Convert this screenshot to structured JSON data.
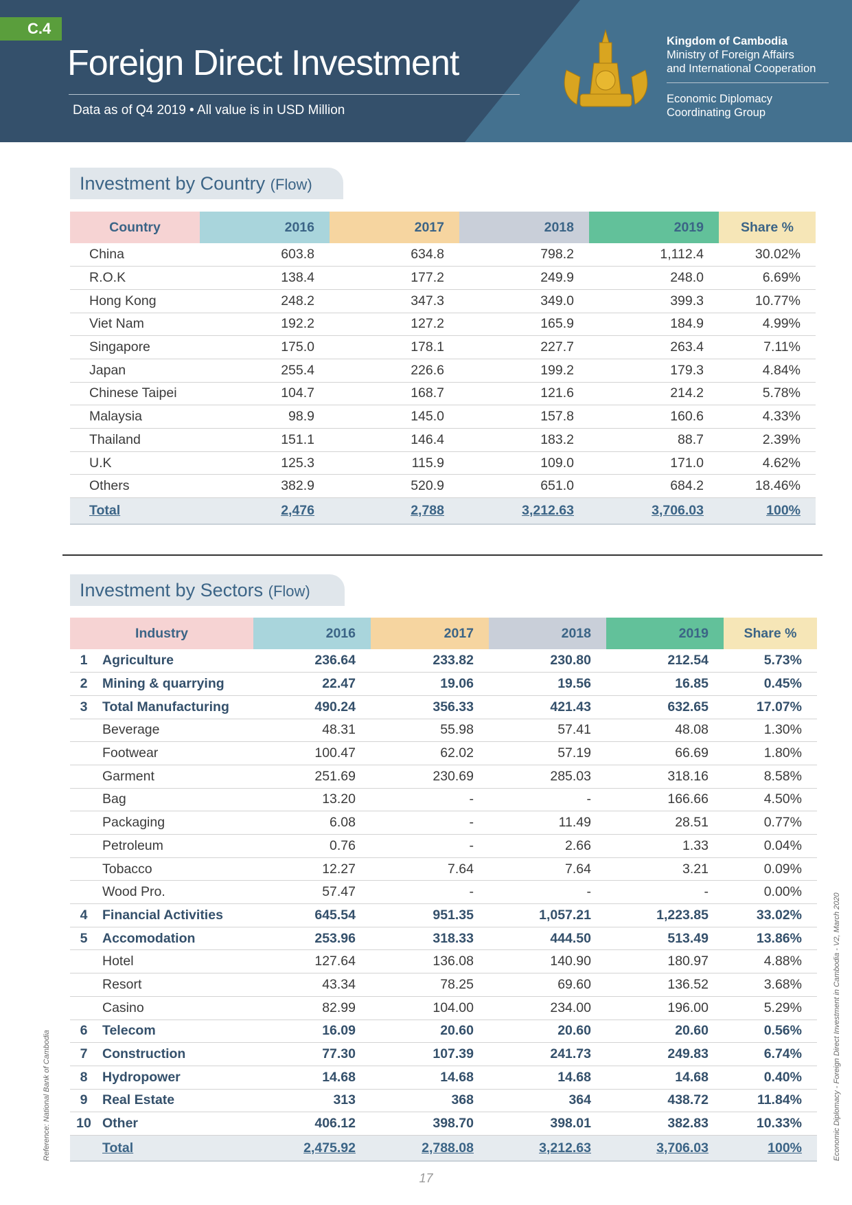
{
  "header": {
    "badge": "C.4",
    "title": "Foreign Direct Investment",
    "subtitle": "Data as of Q4 2019 • All value is in USD Million",
    "org1": "Kingdom of Cambodia",
    "org2": "Ministry of Foreign Affairs",
    "org3": "and International Cooperation",
    "group1": "Economic Diplomacy",
    "group2": "Coordinating Group"
  },
  "colors": {
    "dark": "#34506b",
    "light": "#44718f",
    "badge": "#5a9e3c"
  },
  "country": {
    "title": "Investment by Country",
    "title_suffix": "(Flow)",
    "columns": [
      "Country",
      "2016",
      "2017",
      "2018",
      "2019",
      "Share %"
    ],
    "rows": [
      [
        "China",
        "603.8",
        "634.8",
        "798.2",
        "1,112.4",
        "30.02%"
      ],
      [
        "R.O.K",
        "138.4",
        "177.2",
        "249.9",
        "248.0",
        "6.69%"
      ],
      [
        "Hong Kong",
        "248.2",
        "347.3",
        "349.0",
        "399.3",
        "10.77%"
      ],
      [
        "Viet Nam",
        "192.2",
        "127.2",
        "165.9",
        "184.9",
        "4.99%"
      ],
      [
        "Singapore",
        "175.0",
        "178.1",
        "227.7",
        "263.4",
        "7.11%"
      ],
      [
        "Japan",
        "255.4",
        "226.6",
        "199.2",
        "179.3",
        "4.84%"
      ],
      [
        "Chinese Taipei",
        "104.7",
        "168.7",
        "121.6",
        "214.2",
        "5.78%"
      ],
      [
        "Malaysia",
        "98.9",
        "145.0",
        "157.8",
        "160.6",
        "4.33%"
      ],
      [
        "Thailand",
        "151.1",
        "146.4",
        "183.2",
        "88.7",
        "2.39%"
      ],
      [
        "U.K",
        "125.3",
        "115.9",
        "109.0",
        "171.0",
        "4.62%"
      ],
      [
        "Others",
        "382.9",
        "520.9",
        "651.0",
        "684.2",
        "18.46%"
      ]
    ],
    "total": [
      "Total",
      "2,476",
      "2,788",
      "3,212.63",
      "3,706.03",
      "100%"
    ]
  },
  "sectors": {
    "title": "Investment by Sectors",
    "title_suffix": "(Flow)",
    "columns": [
      "Industry",
      "2016",
      "2017",
      "2018",
      "2019",
      "Share %"
    ],
    "rows": [
      [
        "1",
        "Agriculture",
        "236.64",
        "233.82",
        "230.80",
        "212.54",
        "5.73%"
      ],
      [
        "2",
        "Mining & quarrying",
        "22.47",
        "19.06",
        "19.56",
        "16.85",
        "0.45%"
      ],
      [
        "3",
        "Total Manufacturing",
        "490.24",
        "356.33",
        "421.43",
        "632.65",
        "17.07%"
      ],
      [
        "",
        "Beverage",
        "48.31",
        "55.98",
        "57.41",
        "48.08",
        "1.30%"
      ],
      [
        "",
        "Footwear",
        "100.47",
        "62.02",
        "57.19",
        "66.69",
        "1.80%"
      ],
      [
        "",
        "Garment",
        "251.69",
        "230.69",
        "285.03",
        "318.16",
        "8.58%"
      ],
      [
        "",
        "Bag",
        "13.20",
        "-",
        "-",
        "166.66",
        "4.50%"
      ],
      [
        "",
        "Packaging",
        "6.08",
        "-",
        "11.49",
        "28.51",
        "0.77%"
      ],
      [
        "",
        "Petroleum",
        "0.76",
        "-",
        "2.66",
        "1.33",
        "0.04%"
      ],
      [
        "",
        "Tobacco",
        "12.27",
        "7.64",
        "7.64",
        "3.21",
        "0.09%"
      ],
      [
        "",
        "Wood Pro.",
        "57.47",
        "-",
        "-",
        "-",
        "0.00%"
      ],
      [
        "4",
        "Financial Activities",
        "645.54",
        "951.35",
        "1,057.21",
        "1,223.85",
        "33.02%"
      ],
      [
        "5",
        "Accomodation",
        "253.96",
        "318.33",
        "444.50",
        "513.49",
        "13.86%"
      ],
      [
        "",
        "Hotel",
        "127.64",
        "136.08",
        "140.90",
        "180.97",
        "4.88%"
      ],
      [
        "",
        "Resort",
        "43.34",
        "78.25",
        "69.60",
        "136.52",
        "3.68%"
      ],
      [
        "",
        "Casino",
        "82.99",
        "104.00",
        "234.00",
        "196.00",
        "5.29%"
      ],
      [
        "6",
        "Telecom",
        "16.09",
        "20.60",
        "20.60",
        "20.60",
        "0.56%"
      ],
      [
        "7",
        "Construction",
        "77.30",
        "107.39",
        "241.73",
        "249.83",
        "6.74%"
      ],
      [
        "8",
        "Hydropower",
        "14.68",
        "14.68",
        "14.68",
        "14.68",
        "0.40%"
      ],
      [
        "9",
        "Real Estate",
        "313",
        "368",
        "364",
        "438.72",
        "11.84%"
      ],
      [
        "10",
        "Other",
        "406.12",
        "398.70",
        "398.01",
        "382.83",
        "10.33%"
      ]
    ],
    "total": [
      "",
      "Total",
      "2,475.92",
      "2,788.08",
      "3,212.63",
      "3,706.03",
      "100%"
    ]
  },
  "footer": {
    "page": "17",
    "reference": "Reference: National Bank of Cambodia",
    "credit": "Economic Diplomacy - Foreign Direct Investment in Cambodia - V2, March 2020"
  }
}
